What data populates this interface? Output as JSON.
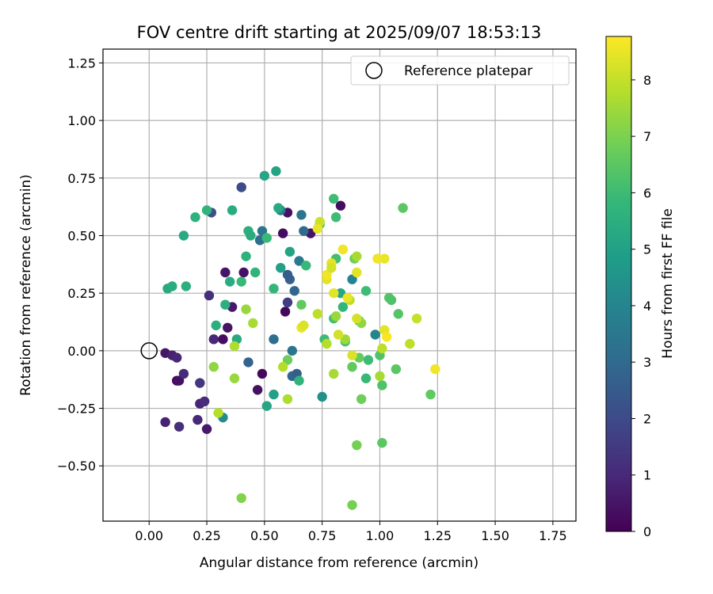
{
  "chart_data": {
    "type": "scatter",
    "title": "FOV centre drift starting at 2025/09/07 18:53:13",
    "xlabel": "Angular distance from reference (arcmin)",
    "ylabel": "Rotation from reference (arcmin)",
    "xlim": [
      -0.2,
      1.85
    ],
    "ylim": [
      -0.74,
      1.31
    ],
    "xticks": [
      0.0,
      0.25,
      0.5,
      0.75,
      1.0,
      1.25,
      1.5,
      1.75
    ],
    "xtick_labels": [
      "0.00",
      "0.25",
      "0.50",
      "0.75",
      "1.00",
      "1.25",
      "1.50",
      "1.75"
    ],
    "yticks": [
      -0.5,
      -0.25,
      0.0,
      0.25,
      0.5,
      0.75,
      1.0,
      1.25
    ],
    "ytick_labels": [
      "−0.50",
      "−0.25",
      "0.00",
      "0.25",
      "0.50",
      "0.75",
      "1.00",
      "1.25"
    ],
    "grid": true,
    "legend_position": "top-right",
    "reference": {
      "label": "Reference platepar",
      "x": 0.0,
      "y": 0.0,
      "marker": "open-circle"
    },
    "colorbar": {
      "label": "Hours from first FF file",
      "colormap": "viridis",
      "range": [
        0,
        8.77
      ],
      "ticks": [
        0,
        1,
        2,
        3,
        4,
        5,
        6,
        7,
        8
      ],
      "tick_labels": [
        "0",
        "1",
        "2",
        "3",
        "4",
        "5",
        "6",
        "7",
        "8"
      ],
      "stops": [
        "#440154",
        "#482878",
        "#3e4989",
        "#31688e",
        "#26828e",
        "#1f9e89",
        "#35b779",
        "#6ece58",
        "#b5de2b",
        "#fde725"
      ]
    },
    "points": [
      {
        "x": 0.07,
        "y": -0.01,
        "h": 0.5
      },
      {
        "x": 0.1,
        "y": -0.02,
        "h": 0.8
      },
      {
        "x": 0.12,
        "y": -0.03,
        "h": 0.9
      },
      {
        "x": 0.12,
        "y": -0.13,
        "h": 0.2
      },
      {
        "x": 0.13,
        "y": -0.13,
        "h": 0.4
      },
      {
        "x": 0.15,
        "y": -0.1,
        "h": 1.1
      },
      {
        "x": 0.07,
        "y": -0.31,
        "h": 0.8
      },
      {
        "x": 0.13,
        "y": -0.33,
        "h": 1.2
      },
      {
        "x": 0.21,
        "y": -0.3,
        "h": 1.0
      },
      {
        "x": 0.22,
        "y": -0.23,
        "h": 0.9
      },
      {
        "x": 0.24,
        "y": -0.22,
        "h": 1.1
      },
      {
        "x": 0.25,
        "y": -0.34,
        "h": 0.6
      },
      {
        "x": 0.22,
        "y": -0.14,
        "h": 1.4
      },
      {
        "x": 0.26,
        "y": 0.24,
        "h": 1.2
      },
      {
        "x": 0.28,
        "y": 0.05,
        "h": 1.0
      },
      {
        "x": 0.32,
        "y": 0.05,
        "h": 0.3
      },
      {
        "x": 0.34,
        "y": 0.1,
        "h": 0.5
      },
      {
        "x": 0.33,
        "y": 0.34,
        "h": 0.5
      },
      {
        "x": 0.36,
        "y": 0.19,
        "h": 0.6
      },
      {
        "x": 0.41,
        "y": 0.34,
        "h": 0.4
      },
      {
        "x": 0.47,
        "y": -0.17,
        "h": 0.4
      },
      {
        "x": 0.49,
        "y": -0.1,
        "h": 0.2
      },
      {
        "x": 0.58,
        "y": 0.51,
        "h": 0.3
      },
      {
        "x": 0.59,
        "y": 0.17,
        "h": 0.2
      },
      {
        "x": 0.6,
        "y": 0.6,
        "h": 0.4
      },
      {
        "x": 0.7,
        "y": 0.51,
        "h": 0.5
      },
      {
        "x": 0.83,
        "y": 0.63,
        "h": 0.3
      },
      {
        "x": 0.6,
        "y": 0.21,
        "h": 1.6
      },
      {
        "x": 0.4,
        "y": 0.71,
        "h": 2.0
      },
      {
        "x": 0.27,
        "y": 0.6,
        "h": 2.2
      },
      {
        "x": 0.43,
        "y": -0.05,
        "h": 2.8
      },
      {
        "x": 0.54,
        "y": 0.05,
        "h": 3.2
      },
      {
        "x": 0.62,
        "y": -0.11,
        "h": 2.9
      },
      {
        "x": 0.64,
        "y": -0.1,
        "h": 2.6
      },
      {
        "x": 0.62,
        "y": 0.0,
        "h": 3.4
      },
      {
        "x": 0.63,
        "y": 0.26,
        "h": 2.9
      },
      {
        "x": 0.61,
        "y": 0.31,
        "h": 2.7
      },
      {
        "x": 0.6,
        "y": 0.33,
        "h": 2.5
      },
      {
        "x": 0.48,
        "y": 0.48,
        "h": 3.2
      },
      {
        "x": 0.49,
        "y": 0.52,
        "h": 3.4
      },
      {
        "x": 0.67,
        "y": 0.52,
        "h": 3.0
      },
      {
        "x": 0.66,
        "y": 0.59,
        "h": 3.4
      },
      {
        "x": 0.65,
        "y": 0.39,
        "h": 3.6
      },
      {
        "x": 0.57,
        "y": 0.61,
        "h": 3.6
      },
      {
        "x": 0.32,
        "y": -0.29,
        "h": 4.2
      },
      {
        "x": 0.75,
        "y": -0.2,
        "h": 4.4
      },
      {
        "x": 0.88,
        "y": 0.31,
        "h": 3.9
      },
      {
        "x": 0.98,
        "y": 0.07,
        "h": 4.0
      },
      {
        "x": 0.08,
        "y": 0.27,
        "h": 5.3
      },
      {
        "x": 0.1,
        "y": 0.28,
        "h": 5.4
      },
      {
        "x": 0.16,
        "y": 0.28,
        "h": 5.5
      },
      {
        "x": 0.15,
        "y": 0.5,
        "h": 5.3
      },
      {
        "x": 0.2,
        "y": 0.58,
        "h": 5.6
      },
      {
        "x": 0.25,
        "y": 0.61,
        "h": 5.7
      },
      {
        "x": 0.36,
        "y": 0.61,
        "h": 5.4
      },
      {
        "x": 0.29,
        "y": 0.11,
        "h": 5.5
      },
      {
        "x": 0.33,
        "y": 0.2,
        "h": 5.5
      },
      {
        "x": 0.35,
        "y": 0.3,
        "h": 5.4
      },
      {
        "x": 0.38,
        "y": 0.05,
        "h": 5.3
      },
      {
        "x": 0.42,
        "y": 0.41,
        "h": 5.6
      },
      {
        "x": 0.4,
        "y": 0.3,
        "h": 5.9
      },
      {
        "x": 0.43,
        "y": 0.52,
        "h": 5.5
      },
      {
        "x": 0.44,
        "y": 0.5,
        "h": 5.4
      },
      {
        "x": 0.46,
        "y": 0.34,
        "h": 5.7
      },
      {
        "x": 0.5,
        "y": 0.76,
        "h": 5.2
      },
      {
        "x": 0.55,
        "y": 0.78,
        "h": 5.1
      },
      {
        "x": 0.56,
        "y": 0.62,
        "h": 5.3
      },
      {
        "x": 0.51,
        "y": 0.49,
        "h": 5.9
      },
      {
        "x": 0.54,
        "y": 0.27,
        "h": 5.8
      },
      {
        "x": 0.57,
        "y": 0.36,
        "h": 5.0
      },
      {
        "x": 0.61,
        "y": 0.43,
        "h": 5.1
      },
      {
        "x": 0.68,
        "y": 0.37,
        "h": 5.9
      },
      {
        "x": 0.54,
        "y": -0.19,
        "h": 5.0
      },
      {
        "x": 0.51,
        "y": -0.24,
        "h": 5.2
      },
      {
        "x": 0.65,
        "y": -0.13,
        "h": 5.7
      },
      {
        "x": 0.81,
        "y": 0.58,
        "h": 6.0
      },
      {
        "x": 0.8,
        "y": 0.66,
        "h": 6.0
      },
      {
        "x": 0.83,
        "y": 0.25,
        "h": 5.2
      },
      {
        "x": 0.84,
        "y": 0.19,
        "h": 5.8
      },
      {
        "x": 0.8,
        "y": 0.14,
        "h": 6.1
      },
      {
        "x": 0.74,
        "y": 0.55,
        "h": 6.2
      },
      {
        "x": 0.81,
        "y": 0.4,
        "h": 6.1
      },
      {
        "x": 0.76,
        "y": 0.05,
        "h": 6.0
      },
      {
        "x": 0.85,
        "y": 0.04,
        "h": 6.2
      },
      {
        "x": 0.91,
        "y": 0.13,
        "h": 5.9
      },
      {
        "x": 0.94,
        "y": 0.26,
        "h": 6.0
      },
      {
        "x": 0.95,
        "y": -0.04,
        "h": 6.0
      },
      {
        "x": 0.94,
        "y": -0.12,
        "h": 5.9
      },
      {
        "x": 1.0,
        "y": -0.02,
        "h": 6.3
      },
      {
        "x": 1.01,
        "y": -0.15,
        "h": 6.3
      },
      {
        "x": 1.04,
        "y": 0.23,
        "h": 6.4
      },
      {
        "x": 1.05,
        "y": 0.22,
        "h": 6.3
      },
      {
        "x": 1.08,
        "y": 0.16,
        "h": 6.4
      },
      {
        "x": 1.07,
        "y": -0.08,
        "h": 6.5
      },
      {
        "x": 1.1,
        "y": 0.62,
        "h": 6.5
      },
      {
        "x": 1.01,
        "y": -0.4,
        "h": 6.5
      },
      {
        "x": 0.89,
        "y": 0.4,
        "h": 6.8
      },
      {
        "x": 0.92,
        "y": -0.21,
        "h": 6.8
      },
      {
        "x": 0.88,
        "y": -0.07,
        "h": 6.6
      },
      {
        "x": 0.91,
        "y": -0.03,
        "h": 6.7
      },
      {
        "x": 1.22,
        "y": -0.19,
        "h": 6.6
      },
      {
        "x": 0.66,
        "y": 0.2,
        "h": 6.6
      },
      {
        "x": 0.6,
        "y": -0.04,
        "h": 6.8
      },
      {
        "x": 0.4,
        "y": -0.64,
        "h": 7.1
      },
      {
        "x": 0.88,
        "y": -0.67,
        "h": 6.9
      },
      {
        "x": 0.9,
        "y": -0.41,
        "h": 6.9
      },
      {
        "x": 0.28,
        "y": -0.07,
        "h": 7.3
      },
      {
        "x": 0.37,
        "y": -0.12,
        "h": 7.4
      },
      {
        "x": 0.42,
        "y": 0.18,
        "h": 7.4
      },
      {
        "x": 0.45,
        "y": 0.12,
        "h": 7.6
      },
      {
        "x": 0.37,
        "y": 0.02,
        "h": 7.7
      },
      {
        "x": 0.3,
        "y": -0.27,
        "h": 7.8
      },
      {
        "x": 0.6,
        "y": -0.21,
        "h": 7.7
      },
      {
        "x": 0.58,
        "y": -0.07,
        "h": 7.8
      },
      {
        "x": 0.73,
        "y": 0.16,
        "h": 7.9
      },
      {
        "x": 0.77,
        "y": 0.03,
        "h": 7.8
      },
      {
        "x": 0.8,
        "y": -0.1,
        "h": 7.6
      },
      {
        "x": 0.81,
        "y": 0.15,
        "h": 7.4
      },
      {
        "x": 0.87,
        "y": 0.22,
        "h": 7.9
      },
      {
        "x": 0.9,
        "y": 0.41,
        "h": 7.6
      },
      {
        "x": 0.85,
        "y": 0.05,
        "h": 7.5
      },
      {
        "x": 0.92,
        "y": 0.12,
        "h": 7.3
      },
      {
        "x": 1.0,
        "y": -0.11,
        "h": 7.6
      },
      {
        "x": 1.01,
        "y": 0.01,
        "h": 7.9
      },
      {
        "x": 1.16,
        "y": 0.14,
        "h": 8.0
      },
      {
        "x": 1.13,
        "y": 0.03,
        "h": 7.9
      },
      {
        "x": 0.74,
        "y": 0.56,
        "h": 8.1
      },
      {
        "x": 0.73,
        "y": 0.53,
        "h": 8.5
      },
      {
        "x": 0.66,
        "y": 0.1,
        "h": 8.5
      },
      {
        "x": 0.67,
        "y": 0.11,
        "h": 8.3
      },
      {
        "x": 0.77,
        "y": 0.31,
        "h": 8.4
      },
      {
        "x": 0.77,
        "y": 0.33,
        "h": 8.6
      },
      {
        "x": 0.79,
        "y": 0.38,
        "h": 8.4
      },
      {
        "x": 0.79,
        "y": 0.36,
        "h": 8.2
      },
      {
        "x": 0.8,
        "y": 0.25,
        "h": 8.4
      },
      {
        "x": 0.82,
        "y": 0.07,
        "h": 8.2
      },
      {
        "x": 0.84,
        "y": 0.44,
        "h": 8.6
      },
      {
        "x": 0.86,
        "y": 0.23,
        "h": 8.5
      },
      {
        "x": 0.88,
        "y": -0.02,
        "h": 8.3
      },
      {
        "x": 0.9,
        "y": 0.34,
        "h": 8.4
      },
      {
        "x": 0.9,
        "y": 0.14,
        "h": 8.2
      },
      {
        "x": 0.99,
        "y": 0.4,
        "h": 8.6
      },
      {
        "x": 1.02,
        "y": 0.4,
        "h": 8.5
      },
      {
        "x": 1.02,
        "y": 0.09,
        "h": 8.4
      },
      {
        "x": 1.03,
        "y": 0.06,
        "h": 8.7
      },
      {
        "x": 1.24,
        "y": -0.08,
        "h": 8.6
      }
    ]
  }
}
